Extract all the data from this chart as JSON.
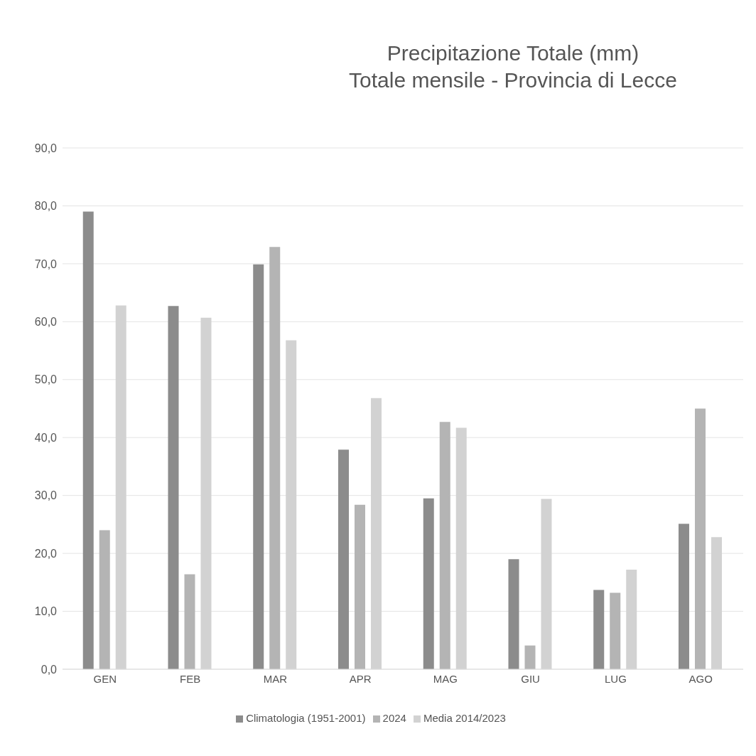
{
  "chart_data": {
    "type": "bar",
    "title": "Precipitazione Totale (mm)",
    "subtitle": "Totale mensile - Provincia di Lecce",
    "categories": [
      "GEN",
      "FEB",
      "MAR",
      "APR",
      "MAG",
      "GIU",
      "LUG",
      "AGO"
    ],
    "series": [
      {
        "name": "Climatologia (1951-2001)",
        "color": "#8c8c8c",
        "values": [
          79.0,
          62.7,
          69.9,
          37.9,
          29.5,
          19.0,
          13.7,
          25.1
        ]
      },
      {
        "name": "2024",
        "color": "#b4b4b4",
        "values": [
          24.0,
          16.4,
          72.9,
          28.4,
          42.7,
          4.1,
          13.2,
          45.0
        ]
      },
      {
        "name": "Media 2014/2023",
        "color": "#d2d2d2",
        "values": [
          62.8,
          60.7,
          56.8,
          46.8,
          41.7,
          29.4,
          17.2,
          22.8
        ]
      }
    ],
    "ylim": [
      0,
      90
    ],
    "yticks": [
      {
        "value": 0,
        "label": "0,0"
      },
      {
        "value": 10,
        "label": "10,0"
      },
      {
        "value": 20,
        "label": "20,0"
      },
      {
        "value": 30,
        "label": "30,0"
      },
      {
        "value": 40,
        "label": "40,0"
      },
      {
        "value": 50,
        "label": "50,0"
      },
      {
        "value": 60,
        "label": "60,0"
      },
      {
        "value": 70,
        "label": "70,0"
      },
      {
        "value": 80,
        "label": "80,0"
      },
      {
        "value": 90,
        "label": "90,0"
      }
    ],
    "grid": "y",
    "legend": "bottom"
  }
}
